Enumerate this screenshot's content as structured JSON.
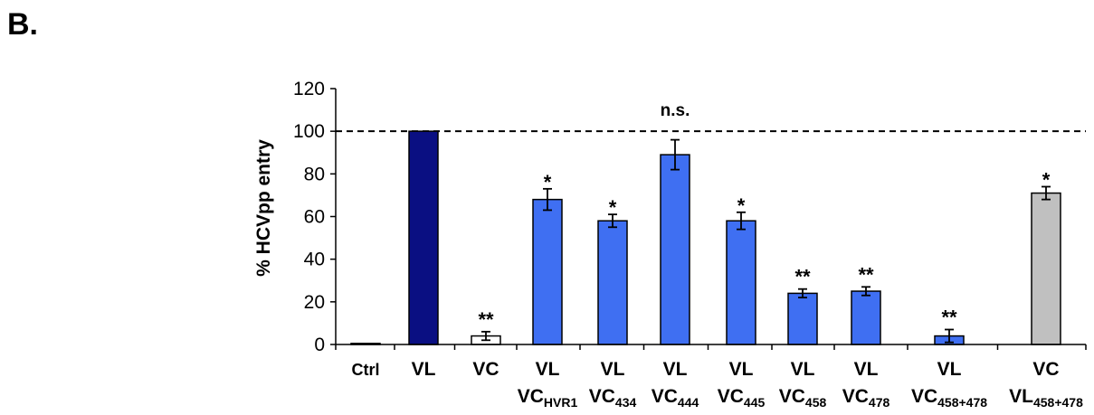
{
  "panel_label": "B.",
  "chart_data": {
    "type": "bar",
    "ylabel": "% HCVpp entry",
    "ylim": [
      0,
      120
    ],
    "yticks": [
      0,
      20,
      40,
      60,
      80,
      100,
      120
    ],
    "grid": false,
    "legend": "none",
    "reference_line": {
      "value": 100,
      "style": "dashed",
      "label": "n.s."
    },
    "categories": [
      {
        "line1": "Ctrl",
        "line2": "",
        "sub": ""
      },
      {
        "line1": "VL",
        "line2": "",
        "sub": ""
      },
      {
        "line1": "VC",
        "line2": "",
        "sub": ""
      },
      {
        "line1": "VL",
        "line2": "VC",
        "sub": "HVR1"
      },
      {
        "line1": "VL",
        "line2": "VC",
        "sub": "434"
      },
      {
        "line1": "VL",
        "line2": "VC",
        "sub": "444"
      },
      {
        "line1": "VL",
        "line2": "VC",
        "sub": "445"
      },
      {
        "line1": "VL",
        "line2": "VC",
        "sub": "458"
      },
      {
        "line1": "VL",
        "line2": "VC",
        "sub": "478"
      },
      {
        "line1": "VL",
        "line2": "VC",
        "sub": "458+478"
      },
      {
        "line1": "VC",
        "line2": "VL",
        "sub": "458+478"
      }
    ],
    "values": [
      0.5,
      100,
      4,
      68,
      58,
      89,
      58,
      24,
      25,
      4,
      71
    ],
    "errors": [
      0.3,
      0.5,
      2,
      5,
      3,
      7,
      4,
      2,
      2,
      3,
      3
    ],
    "significance": [
      "",
      "",
      "**",
      "*",
      "*",
      "",
      "*",
      "**",
      "**",
      "**",
      "*"
    ],
    "colors": [
      "#ffffff",
      "#0a0f82",
      "#ffffff",
      "#3f6ff2",
      "#3f6ff2",
      "#3f6ff2",
      "#3f6ff2",
      "#3f6ff2",
      "#3f6ff2",
      "#3f6ff2",
      "#c0c0c0"
    ]
  }
}
